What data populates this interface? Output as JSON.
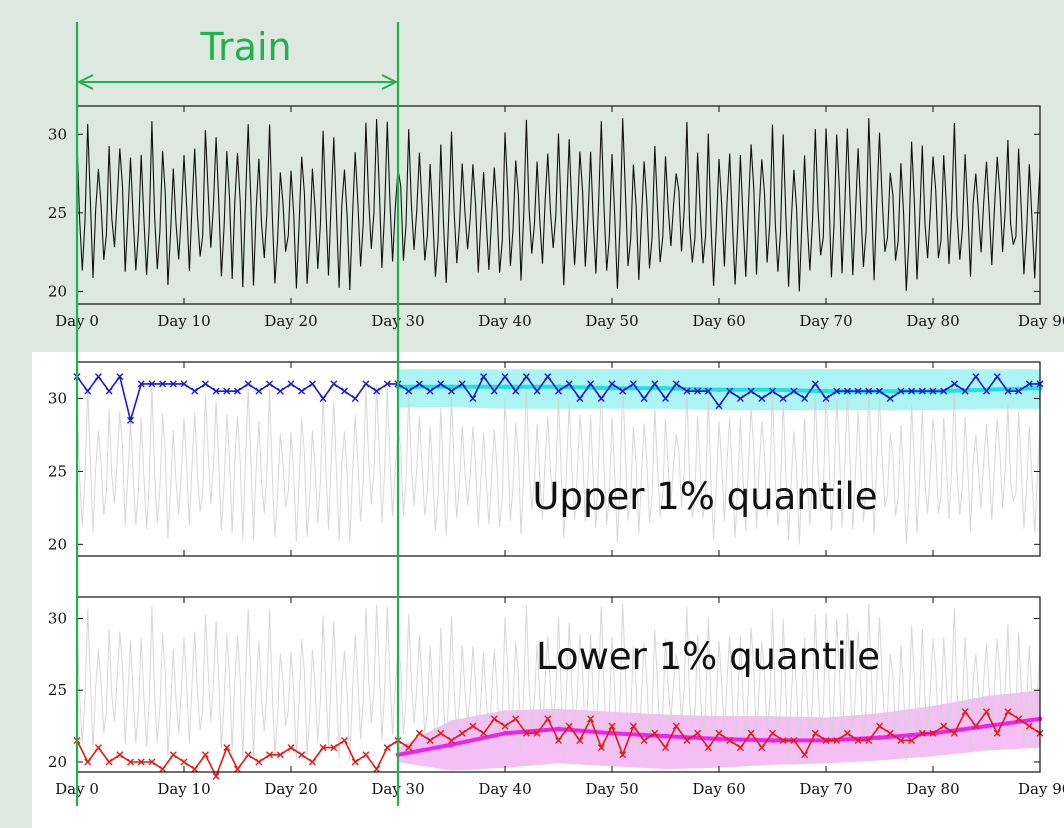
{
  "colors": {
    "background": "#dde8e1",
    "train_marker": "#22b24c",
    "observed_line": "#111111",
    "grey_line": "#d3d3d3",
    "upper_obs": "#1a1ad6",
    "upper_pred": "#20e0e0",
    "upper_band": "#9ff2f2",
    "lower_obs": "#e41a1a",
    "lower_pred": "#ee22ee",
    "lower_band": "#f2b4f2"
  },
  "annotations": {
    "train_label": "Train",
    "upper_label": "Upper 1% quantile",
    "lower_label": "Lower 1% quantile"
  },
  "chart_data": [
    {
      "type": "line",
      "x_ticks": [
        "Day 0",
        "Day 10",
        "Day 20",
        "Day 30",
        "Day 40",
        "Day 50",
        "Day 60",
        "Day 70",
        "Day 80",
        "Day 90"
      ],
      "y_ticks": [
        "20",
        "25",
        "30"
      ],
      "xlim": [
        0,
        90
      ],
      "ylim": [
        19.2,
        31.8
      ],
      "train_range": [
        0,
        30
      ],
      "series": [
        {
          "points_per_day": 4,
          "cycle": [
            29.0,
            25.5,
            21.5,
            24.5
          ],
          "amplitude": 1.0,
          "mean": 25.5,
          "min": 20,
          "max": 31,
          "range_days": [
            0,
            90
          ]
        }
      ]
    },
    {
      "type": "line",
      "x_ticks": [],
      "y_ticks": [
        "20",
        "25",
        "30"
      ],
      "xlim": [
        0,
        90
      ],
      "ylim": [
        19.2,
        32.5
      ],
      "series": [
        {
          "points_per_day": 4,
          "cycle": [
            29.0,
            25.5,
            21.5,
            24.5
          ],
          "range_days": [
            0,
            90
          ]
        },
        {
          "x": [
            0,
            1,
            2,
            3,
            4,
            5,
            6,
            7,
            8,
            9,
            10,
            11,
            12,
            13,
            14,
            15,
            16,
            17,
            18,
            19,
            20,
            21,
            22,
            23,
            24,
            25,
            26,
            27,
            28,
            29,
            30,
            31,
            32,
            33,
            34,
            35,
            36,
            37,
            38,
            39,
            40,
            41,
            42,
            43,
            44,
            45,
            46,
            47,
            48,
            49,
            50,
            51,
            52,
            53,
            54,
            55,
            56,
            57,
            58,
            59,
            60,
            61,
            62,
            63,
            64,
            65,
            66,
            67,
            68,
            69,
            70,
            71,
            72,
            73,
            74,
            75,
            76,
            77,
            78,
            79,
            80,
            81,
            82,
            83,
            84,
            85,
            86,
            87,
            88,
            89,
            90
          ],
          "values": [
            31.5,
            30.5,
            31.5,
            30.5,
            31.5,
            28.5,
            31.0,
            31.0,
            31.0,
            31.0,
            31.0,
            30.5,
            31.0,
            30.5,
            30.5,
            30.5,
            31.0,
            30.5,
            31.0,
            30.5,
            31.0,
            30.5,
            31.0,
            30.0,
            31.0,
            30.5,
            30.0,
            31.0,
            30.5,
            31.0,
            31.0,
            30.5,
            31.0,
            30.5,
            31.0,
            30.5,
            31.0,
            30.0,
            31.5,
            30.5,
            31.5,
            30.5,
            31.5,
            30.5,
            31.5,
            30.5,
            31.0,
            30.0,
            31.0,
            30.0,
            31.0,
            30.5,
            31.0,
            30.0,
            31.0,
            30.0,
            31.0,
            30.5,
            30.5,
            30.5,
            29.5,
            30.5,
            30.0,
            30.5,
            30.0,
            30.5,
            30.0,
            30.5,
            30.0,
            31.0,
            30.0,
            30.5,
            30.5,
            30.5,
            30.5,
            30.5,
            30.0,
            30.5,
            30.5,
            30.5,
            30.5,
            30.5,
            31.0,
            30.5,
            31.5,
            30.5,
            31.5,
            30.5,
            30.5,
            31.0,
            31.0
          ]
        },
        {
          "x": [
            30,
            35,
            40,
            45,
            50,
            55,
            60,
            65,
            70,
            75,
            80,
            85,
            90
          ],
          "pred": [
            30.8,
            30.8,
            30.8,
            30.8,
            30.7,
            30.7,
            30.6,
            30.6,
            30.5,
            30.5,
            30.5,
            30.6,
            30.7
          ],
          "band_low": [
            29.4,
            29.4,
            29.3,
            29.3,
            29.3,
            29.3,
            29.2,
            29.2,
            29.2,
            29.2,
            29.2,
            29.3,
            29.3
          ],
          "band_high": [
            32.0,
            32.0,
            32.0,
            32.0,
            32.0,
            32.0,
            32.0,
            32.0,
            32.0,
            32.0,
            32.0,
            32.0,
            32.0
          ]
        }
      ]
    },
    {
      "type": "line",
      "x_ticks": [
        "Day 0",
        "Day 10",
        "Day 20",
        "Day 30",
        "Day 40",
        "Day 50",
        "Day 60",
        "Day 70",
        "Day 80",
        "Day 90"
      ],
      "y_ticks": [
        "20",
        "25",
        "30"
      ],
      "xlim": [
        0,
        90
      ],
      "ylim": [
        19.3,
        31.5
      ],
      "series": [
        {
          "points_per_day": 4,
          "cycle": [
            29.0,
            25.5,
            21.5,
            24.5
          ],
          "range_days": [
            0,
            90
          ]
        },
        {
          "x": [
            0,
            1,
            2,
            3,
            4,
            5,
            6,
            7,
            8,
            9,
            10,
            11,
            12,
            13,
            14,
            15,
            16,
            17,
            18,
            19,
            20,
            21,
            22,
            23,
            24,
            25,
            26,
            27,
            28,
            29,
            30,
            31,
            32,
            33,
            34,
            35,
            36,
            37,
            38,
            39,
            40,
            41,
            42,
            43,
            44,
            45,
            46,
            47,
            48,
            49,
            50,
            51,
            52,
            53,
            54,
            55,
            56,
            57,
            58,
            59,
            60,
            61,
            62,
            63,
            64,
            65,
            66,
            67,
            68,
            69,
            70,
            71,
            72,
            73,
            74,
            75,
            76,
            77,
            78,
            79,
            80,
            81,
            82,
            83,
            84,
            85,
            86,
            87,
            88,
            89,
            90
          ],
          "values": [
            21.5,
            20.0,
            21.0,
            20.0,
            20.5,
            20.0,
            20.0,
            20.0,
            19.5,
            20.5,
            20.0,
            19.5,
            20.5,
            19.0,
            21.0,
            19.5,
            20.5,
            20.0,
            20.5,
            20.5,
            21.0,
            20.5,
            20.0,
            21.0,
            21.0,
            21.5,
            20.0,
            20.5,
            19.5,
            21.0,
            21.5,
            21.0,
            22.0,
            21.5,
            22.0,
            21.5,
            22.0,
            22.5,
            22.0,
            23.0,
            22.5,
            23.0,
            22.0,
            22.0,
            23.0,
            21.5,
            22.5,
            21.5,
            23.0,
            21.0,
            22.5,
            20.5,
            22.5,
            21.5,
            22.0,
            21.0,
            22.5,
            21.5,
            22.0,
            21.0,
            22.0,
            21.5,
            21.0,
            22.0,
            21.0,
            22.0,
            21.5,
            21.5,
            20.5,
            22.0,
            21.5,
            21.5,
            22.0,
            21.5,
            21.5,
            22.5,
            22.0,
            21.5,
            21.5,
            22.0,
            22.0,
            22.5,
            22.0,
            23.5,
            22.5,
            23.5,
            22.0,
            23.5,
            23.0,
            22.5,
            22.0
          ]
        },
        {
          "x": [
            30,
            35,
            40,
            45,
            50,
            55,
            60,
            65,
            70,
            75,
            80,
            85,
            90
          ],
          "pred": [
            20.5,
            21.2,
            22.0,
            22.3,
            22.0,
            21.8,
            21.6,
            21.5,
            21.5,
            21.7,
            22.0,
            22.5,
            23.0
          ],
          "band_low": [
            20.0,
            19.4,
            19.6,
            19.9,
            19.7,
            19.5,
            19.6,
            19.8,
            19.9,
            20.1,
            20.4,
            20.8,
            21.0
          ],
          "band_high": [
            21.0,
            22.9,
            23.6,
            23.7,
            23.5,
            23.3,
            23.2,
            23.2,
            23.1,
            23.4,
            23.9,
            24.6,
            25.0
          ]
        }
      ]
    }
  ]
}
